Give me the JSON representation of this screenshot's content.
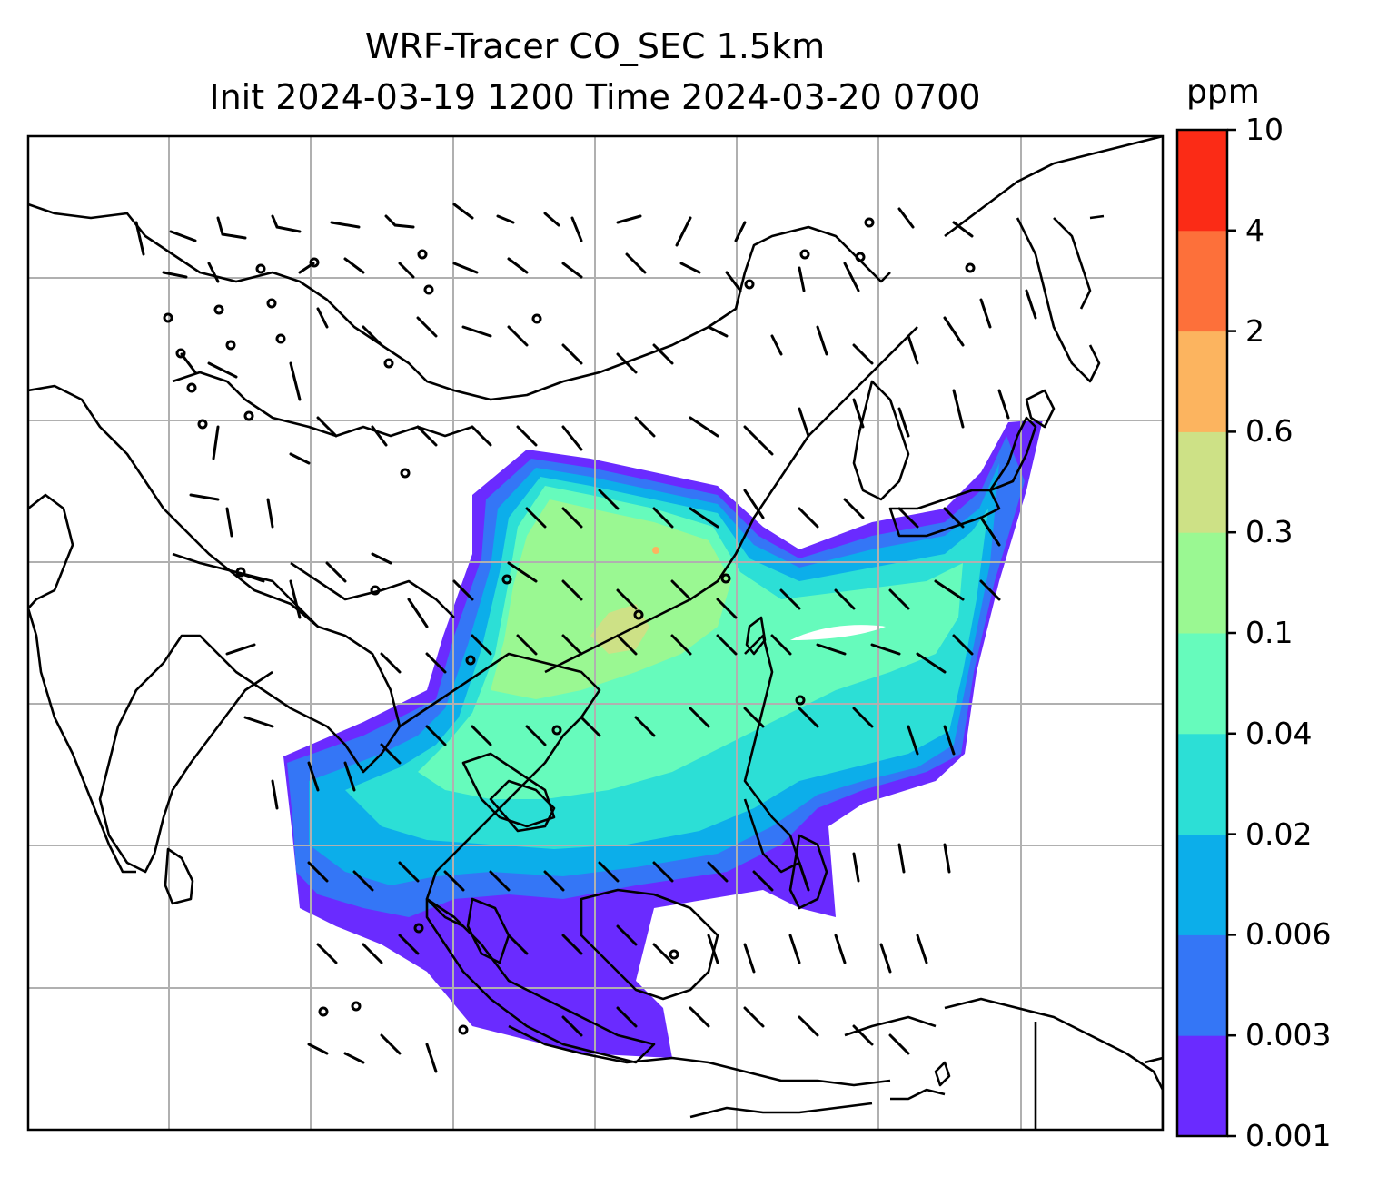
{
  "title": {
    "line1": "WRF-Tracer CO_SEC 1.5km",
    "line2": "Init 2024-03-19 1200 Time 2024-03-20 0700"
  },
  "colorbar": {
    "unit": "ppm",
    "ticks": [
      "0.001",
      "0.003",
      "0.006",
      "0.02",
      "0.04",
      "0.1",
      "0.3",
      "0.6",
      "2",
      "4",
      "10"
    ],
    "colors": [
      "#6a2bff",
      "#3476f6",
      "#0caeea",
      "#2cdfd6",
      "#66fbbc",
      "#9af892",
      "#cde186",
      "#fcb45f",
      "#fd703a",
      "#fb2b16"
    ]
  },
  "map": {
    "projection_grid": "on",
    "gridline_color": "#b0b0b0",
    "coastline_color": "#000000",
    "wind_barbs": "on"
  }
}
